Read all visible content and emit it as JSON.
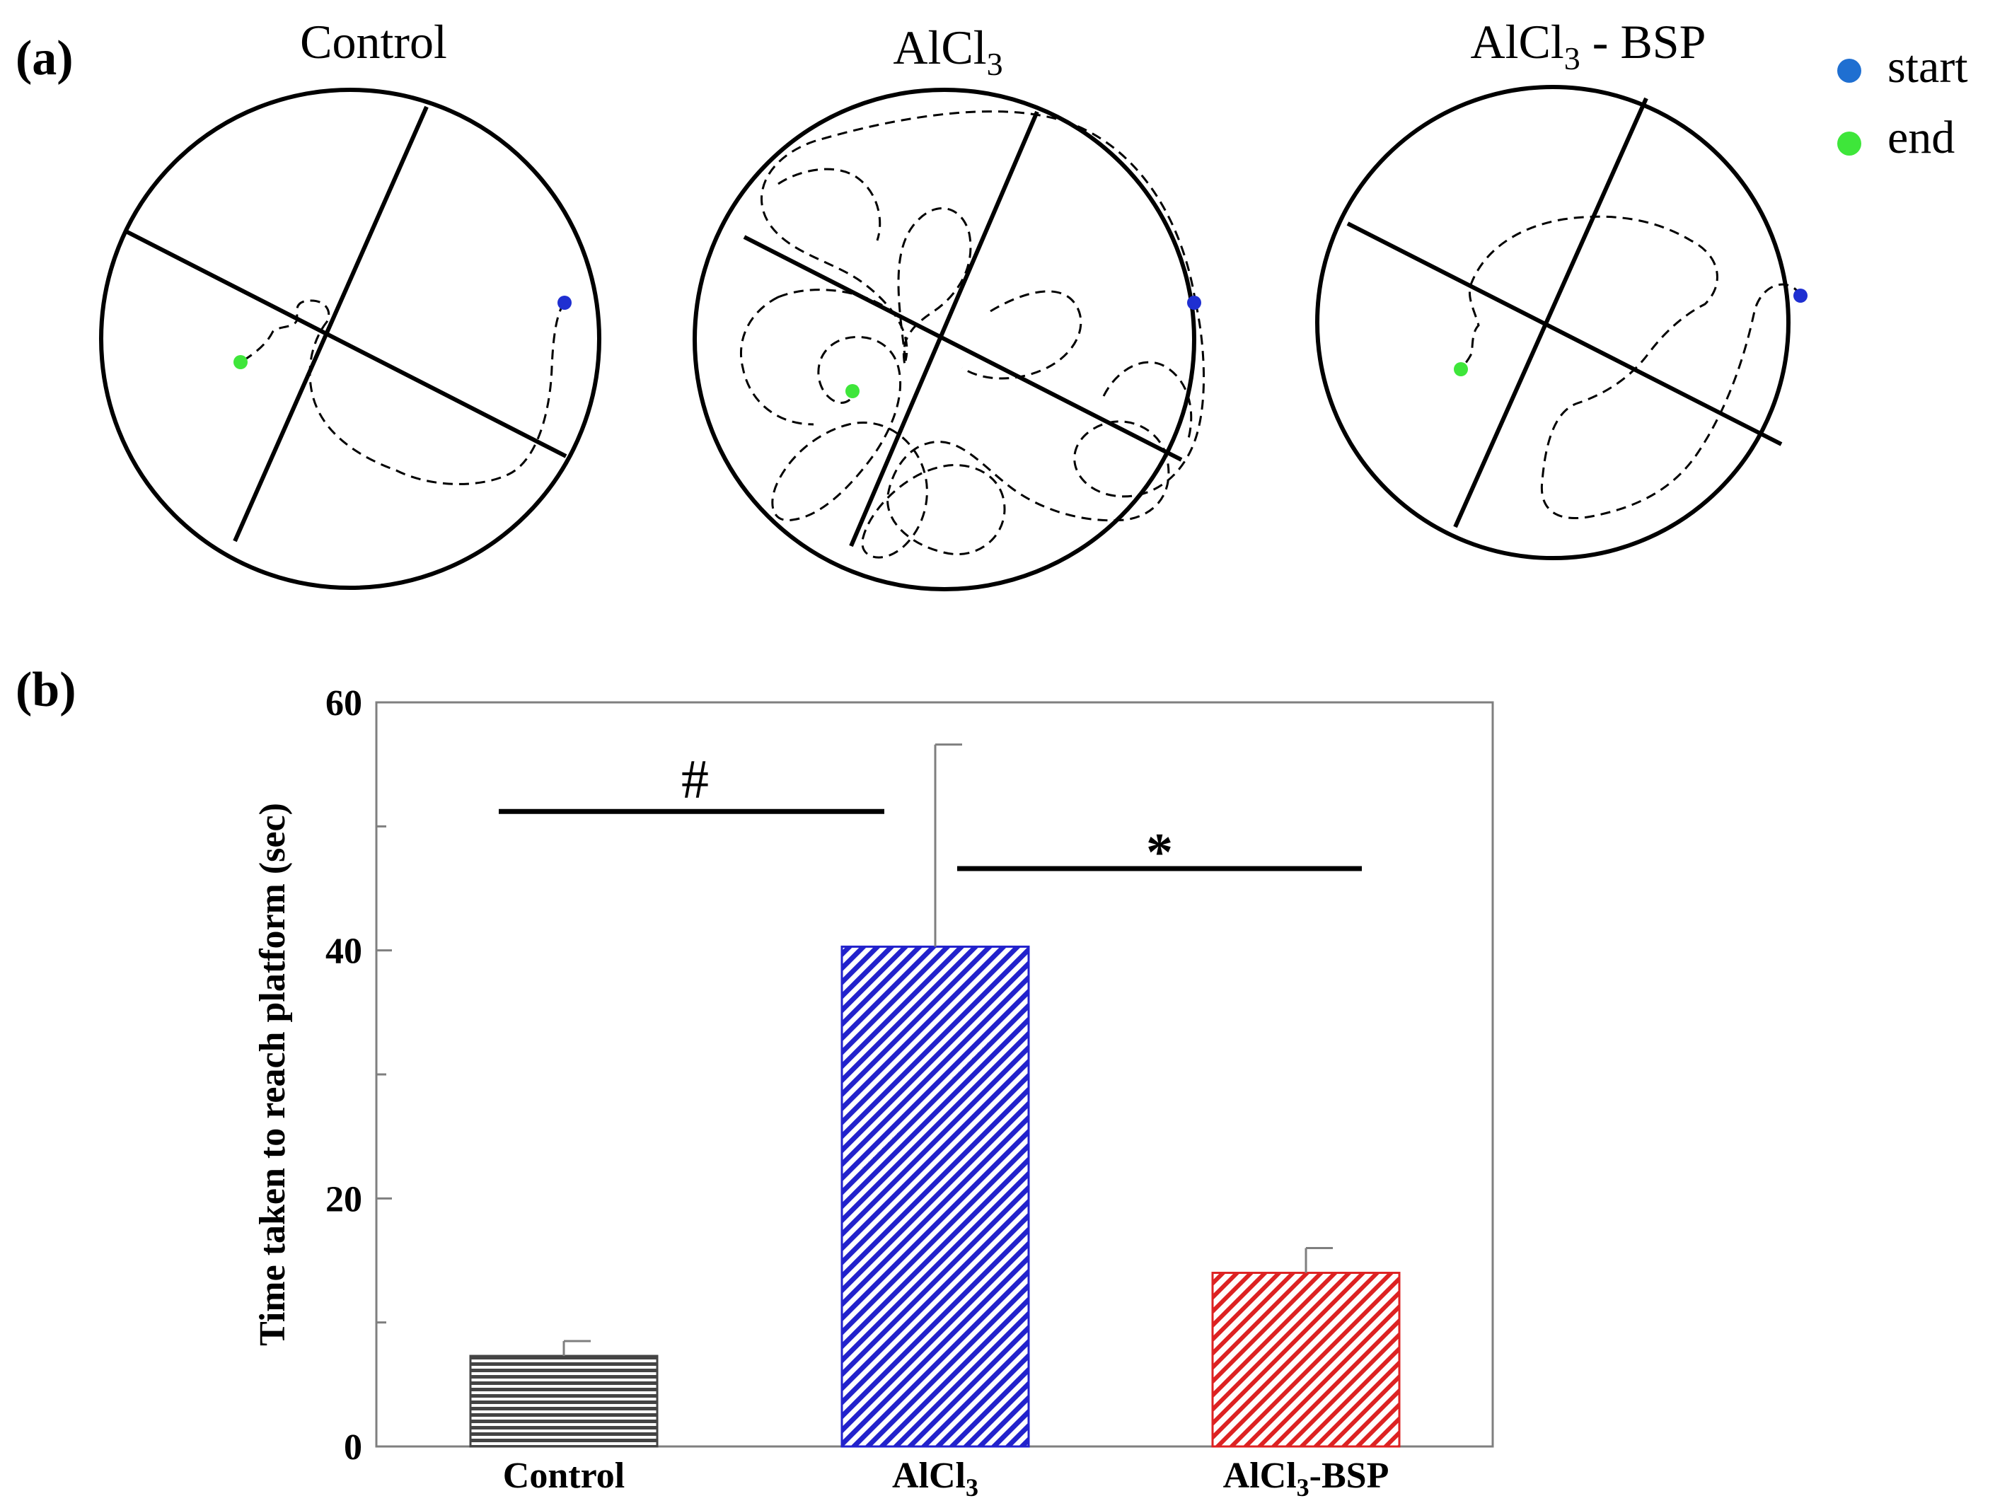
{
  "panel_a": {
    "label": "(a)",
    "legend": {
      "start": {
        "label": "start",
        "color": "#1f6fd1"
      },
      "end": {
        "label": "end",
        "color": "#3ee63a"
      }
    },
    "mazes": [
      {
        "title": "Control",
        "start_color": "#1f2fd1",
        "end_color": "#3ee63a"
      },
      {
        "title_main": "AlCl",
        "title_sub": "3",
        "start_color": "#1f2fd1",
        "end_color": "#3ee63a"
      },
      {
        "title_main": "AlCl",
        "title_sub": "3",
        "title_suffix": " - BSP",
        "start_color": "#1f2fd1",
        "end_color": "#3ee63a"
      }
    ]
  },
  "panel_b": {
    "label": "(b)"
  },
  "chart_data": {
    "type": "bar",
    "ylabel": "Time taken to reach platform (sec)",
    "xlabel": "",
    "ylim": [
      0,
      60
    ],
    "yticks": [
      0,
      20,
      40,
      60
    ],
    "grid": false,
    "categories": [
      {
        "main": "Control",
        "sub": "",
        "suffix": ""
      },
      {
        "main": "AlCl",
        "sub": "3",
        "suffix": ""
      },
      {
        "main": "AlCl",
        "sub": "3",
        "suffix": "-BSP"
      }
    ],
    "values": [
      7.3,
      40.3,
      14.0
    ],
    "errors": [
      1.2,
      16.3,
      2.0
    ],
    "colors": [
      "#444444",
      "#2222cc",
      "#dd2222"
    ],
    "patterns": [
      "horizontal",
      "diagonal",
      "diagonal"
    ],
    "significance": [
      {
        "symbol": "#",
        "from": 0,
        "to": 1,
        "y": 51.2
      },
      {
        "symbol": "*",
        "from": 1,
        "to": 2,
        "y": 46.6
      }
    ]
  }
}
